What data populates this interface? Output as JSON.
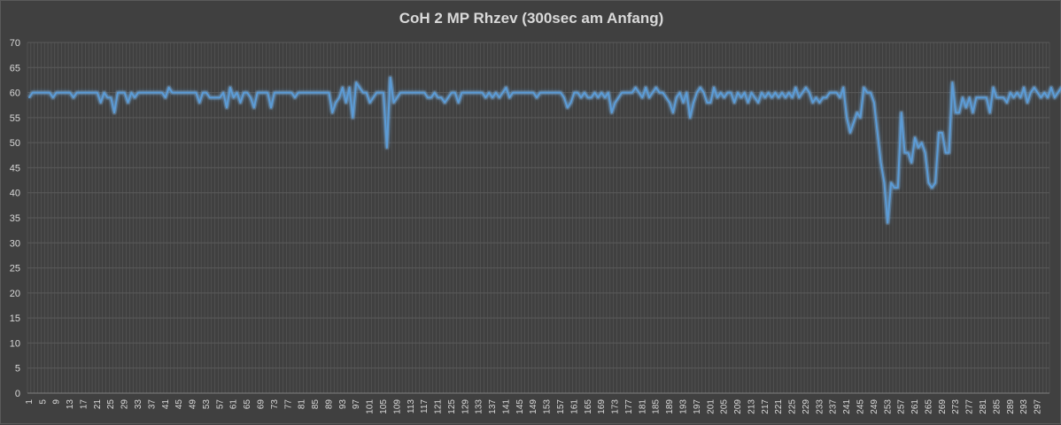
{
  "chart_data": {
    "type": "line",
    "title": "CoH 2 MP Rhzev (300sec am Anfang)",
    "xlabel": "",
    "ylabel": "",
    "ylim": [
      0,
      70
    ],
    "yticks": [
      0,
      5,
      10,
      15,
      20,
      25,
      30,
      35,
      40,
      45,
      50,
      55,
      60,
      65,
      70
    ],
    "x_start": 1,
    "x_end": 300,
    "x_label_step": 4,
    "grid": true,
    "legend": "none",
    "colors": {
      "line": "#5b9bd5",
      "grid": "#5a5a5a",
      "background": "#404040",
      "text": "#d9d9d9"
    },
    "series": [
      {
        "values": [
          59,
          60,
          60,
          60,
          60,
          60,
          60,
          59,
          60,
          60,
          60,
          60,
          60,
          59,
          60,
          60,
          60,
          60,
          60,
          60,
          60,
          58,
          60,
          59,
          59,
          56,
          60,
          60,
          60,
          58,
          60,
          59,
          60,
          60,
          60,
          60,
          60,
          60,
          60,
          60,
          59,
          61,
          60,
          60,
          60,
          60,
          60,
          60,
          60,
          60,
          58,
          60,
          60,
          59,
          59,
          59,
          59,
          60,
          57,
          61,
          59,
          60,
          58,
          60,
          60,
          59,
          57,
          60,
          60,
          60,
          60,
          57,
          60,
          60,
          60,
          60,
          60,
          60,
          59,
          60,
          60,
          60,
          60,
          60,
          60,
          60,
          60,
          60,
          60,
          56,
          58,
          59,
          61,
          58,
          61,
          55,
          62,
          61,
          60,
          60,
          58,
          59,
          60,
          60,
          60,
          49,
          63,
          58,
          59,
          60,
          60,
          60,
          60,
          60,
          60,
          60,
          60,
          59,
          59,
          60,
          59,
          59,
          58,
          59,
          60,
          60,
          58,
          60,
          60,
          60,
          60,
          60,
          60,
          60,
          59,
          60,
          59,
          60,
          59,
          60,
          61,
          59,
          60,
          60,
          60,
          60,
          60,
          60,
          60,
          59,
          60,
          60,
          60,
          60,
          60,
          60,
          60,
          59,
          57,
          58,
          60,
          60,
          59,
          60,
          59,
          59,
          60,
          59,
          60,
          59,
          60,
          56,
          58,
          59,
          60,
          60,
          60,
          60,
          61,
          60,
          59,
          61,
          59,
          60,
          61,
          60,
          60,
          59,
          58,
          56,
          59,
          60,
          58,
          60,
          55,
          58,
          60,
          61,
          60,
          58,
          58,
          61,
          59,
          60,
          59,
          60,
          60,
          58,
          60,
          59,
          60,
          58,
          60,
          59,
          58,
          60,
          59,
          60,
          59,
          60,
          59,
          60,
          59,
          60,
          59,
          61,
          59,
          60,
          61,
          60,
          58,
          59,
          58,
          59,
          59,
          60,
          60,
          60,
          59,
          61,
          55,
          52,
          54,
          56,
          55,
          61,
          60,
          60,
          58,
          52,
          46,
          42,
          34,
          42,
          41,
          41,
          56,
          48,
          48,
          46,
          51,
          49,
          50,
          48,
          42,
          41,
          42,
          52,
          52,
          48,
          48,
          62,
          56,
          56,
          59,
          57,
          59,
          56,
          59,
          59,
          59,
          59,
          56,
          61,
          59,
          59,
          59,
          58,
          60,
          59,
          60,
          59,
          61,
          58,
          60,
          61,
          60,
          59,
          60,
          59,
          61,
          59,
          60,
          61,
          60,
          59
        ]
      }
    ]
  }
}
